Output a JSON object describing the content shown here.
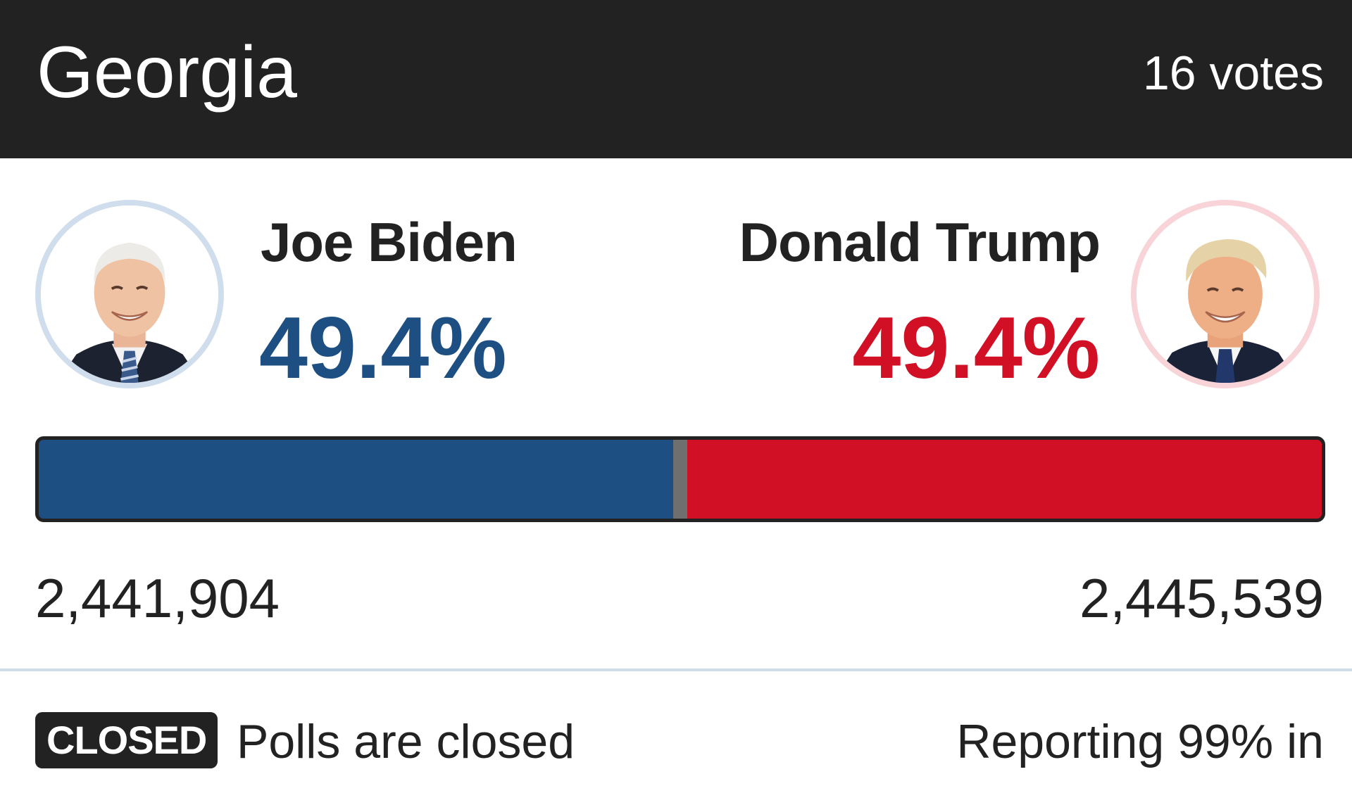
{
  "header": {
    "state": "Georgia",
    "electoral_votes": "16 votes"
  },
  "candidates": [
    {
      "name": "Joe Biden",
      "percent": "49.4%",
      "votes": "2,441,904",
      "vote_count": 2441904,
      "color": "#1d4f82",
      "ring_color": "#cfdded",
      "avatar_icon": "joe-biden-portrait"
    },
    {
      "name": "Donald Trump",
      "percent": "49.4%",
      "votes": "2,445,539",
      "vote_count": 2445539,
      "color": "#d10f25",
      "ring_color": "#f8d3d8",
      "avatar_icon": "donald-trump-portrait"
    }
  ],
  "bar": {
    "dem_share_percent": 49.963,
    "midpoint_percent": 50
  },
  "footer": {
    "badge": "CLOSED",
    "status": "Polls are closed",
    "reporting": "Reporting 99% in"
  },
  "colors": {
    "header_bg": "#222222",
    "text": "#222222",
    "divider": "#cfdde8",
    "midline": "#6f6f6f"
  }
}
